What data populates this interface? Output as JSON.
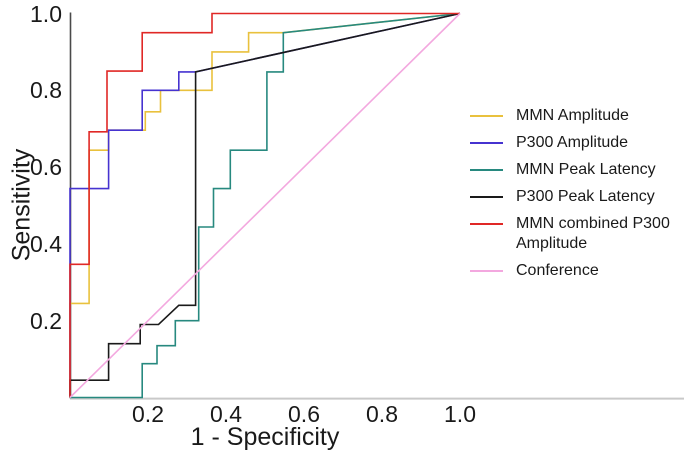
{
  "chart_data": {
    "type": "line",
    "subtype": "roc-step-curves",
    "title": "",
    "xlabel": "1 - Specificity",
    "ylabel": "Sensitivity",
    "xlim": [
      0,
      1
    ],
    "ylim": [
      0,
      1
    ],
    "xticks": [
      {
        "value": 0.2,
        "label": "0.2"
      },
      {
        "value": 0.4,
        "label": "0.4"
      },
      {
        "value": 0.6,
        "label": "0.6"
      },
      {
        "value": 0.8,
        "label": "0.8"
      },
      {
        "value": 1.0,
        "label": "1.0"
      }
    ],
    "yticks": [
      {
        "value": 0.2,
        "label": "0.2"
      },
      {
        "value": 0.4,
        "label": "0.4"
      },
      {
        "value": 0.6,
        "label": "0.6"
      },
      {
        "value": 0.8,
        "label": "0.8"
      },
      {
        "value": 1.0,
        "label": "1.0"
      }
    ],
    "grid": false,
    "legend_position": "right",
    "axis_colors": {
      "y_axis": "#4a4a4a",
      "x_axis": "#c9c9c9"
    },
    "series": [
      {
        "name": "MMN Amplitude",
        "color": "#e9c13d",
        "points": [
          [
            0,
            0
          ],
          [
            0,
            0.245
          ],
          [
            0.049,
            0.245
          ],
          [
            0.049,
            0.644
          ],
          [
            0.099,
            0.644
          ],
          [
            0.099,
            0.696
          ],
          [
            0.193,
            0.696
          ],
          [
            0.193,
            0.744
          ],
          [
            0.232,
            0.744
          ],
          [
            0.232,
            0.8
          ],
          [
            0.364,
            0.8
          ],
          [
            0.364,
            0.9
          ],
          [
            0.458,
            0.9
          ],
          [
            0.458,
            0.95
          ],
          [
            0.547,
            0.95
          ],
          [
            1,
            1
          ]
        ]
      },
      {
        "name": "P300 Amplitude",
        "color": "#4633d0",
        "points": [
          [
            0,
            0
          ],
          [
            0,
            0.544
          ],
          [
            0.099,
            0.544
          ],
          [
            0.099,
            0.696
          ],
          [
            0.185,
            0.696
          ],
          [
            0.185,
            0.8
          ],
          [
            0.279,
            0.8
          ],
          [
            0.279,
            0.848
          ],
          [
            0.322,
            0.848
          ],
          [
            1,
            1
          ]
        ]
      },
      {
        "name": "MMN Peak Latency",
        "color": "#27897f",
        "points": [
          [
            0,
            0
          ],
          [
            0.185,
            0
          ],
          [
            0.185,
            0.088
          ],
          [
            0.223,
            0.088
          ],
          [
            0.223,
            0.135
          ],
          [
            0.27,
            0.135
          ],
          [
            0.27,
            0.2
          ],
          [
            0.33,
            0.2
          ],
          [
            0.33,
            0.444
          ],
          [
            0.368,
            0.444
          ],
          [
            0.368,
            0.544
          ],
          [
            0.411,
            0.544
          ],
          [
            0.411,
            0.644
          ],
          [
            0.505,
            0.644
          ],
          [
            0.505,
            0.848
          ],
          [
            0.547,
            0.848
          ],
          [
            0.547,
            0.95
          ],
          [
            1,
            1
          ]
        ]
      },
      {
        "name": "P300 Peak Latency",
        "color": "#1a1a1a",
        "points": [
          [
            0,
            0
          ],
          [
            0,
            0.045
          ],
          [
            0.099,
            0.045
          ],
          [
            0.099,
            0.14
          ],
          [
            0.18,
            0.14
          ],
          [
            0.18,
            0.19
          ],
          [
            0.227,
            0.19
          ],
          [
            0.279,
            0.24
          ],
          [
            0.322,
            0.24
          ],
          [
            0.322,
            0.848
          ],
          [
            1,
            1
          ]
        ]
      },
      {
        "name": "MMN combined P300 Amplitude",
        "color": "#e02826",
        "points": [
          [
            0,
            0
          ],
          [
            0,
            0.347
          ],
          [
            0.049,
            0.347
          ],
          [
            0.049,
            0.692
          ],
          [
            0.095,
            0.692
          ],
          [
            0.095,
            0.85
          ],
          [
            0.185,
            0.85
          ],
          [
            0.185,
            0.95
          ],
          [
            0.364,
            0.95
          ],
          [
            0.364,
            1.0
          ],
          [
            1,
            1
          ]
        ]
      },
      {
        "name": "Conference",
        "color": "#f3a8df",
        "points": [
          [
            0,
            0
          ],
          [
            1,
            1
          ]
        ]
      }
    ]
  }
}
